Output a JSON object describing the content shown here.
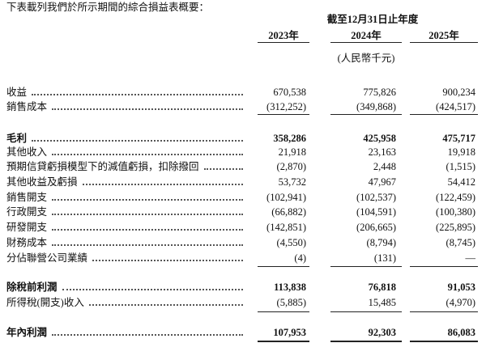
{
  "intro": "下表載列我們於所示期間的綜合損益表概要：",
  "header": {
    "period": "截至12月31日止年度",
    "years": [
      "2023年",
      "2024年",
      "2025年"
    ],
    "unit": "(人民幣千元)"
  },
  "rows": [
    {
      "label": "收益",
      "values": [
        "670,538",
        "775,826",
        "900,234"
      ]
    },
    {
      "label": "銷售成本",
      "values": [
        "(312,252)",
        "(349,868)",
        "(424,517)"
      ]
    },
    {
      "label": "毛利",
      "values": [
        "358,286",
        "425,958",
        "475,717"
      ]
    },
    {
      "label": "其他收入",
      "values": [
        "21,918",
        "23,163",
        "19,918"
      ]
    },
    {
      "label": "預期信貸虧損模型下的減值虧損，扣除撥回",
      "values": [
        "(2,870)",
        "2,448",
        "(1,515)"
      ]
    },
    {
      "label": "其他收益及虧損",
      "values": [
        "53,732",
        "47,967",
        "54,412"
      ]
    },
    {
      "label": "銷售開支",
      "values": [
        "(102,941)",
        "(102,537)",
        "(122,459)"
      ]
    },
    {
      "label": "行政開支",
      "values": [
        "(66,882)",
        "(104,591)",
        "(100,380)"
      ]
    },
    {
      "label": "研發開支",
      "values": [
        "(142,851)",
        "(206,665)",
        "(225,895)"
      ]
    },
    {
      "label": "財務成本",
      "values": [
        "(4,550)",
        "(8,794)",
        "(8,745)"
      ]
    },
    {
      "label": "分佔聯營公司業績",
      "values": [
        "(4)",
        "(131)",
        "—"
      ]
    },
    {
      "label": "除稅前利潤",
      "values": [
        "113,838",
        "76,818",
        "91,053"
      ]
    },
    {
      "label": "所得稅(開支)收入",
      "values": [
        "(5,885)",
        "15,485",
        "(4,970)"
      ]
    },
    {
      "label": "年內利潤",
      "values": [
        "107,953",
        "92,303",
        "86,083"
      ]
    }
  ]
}
